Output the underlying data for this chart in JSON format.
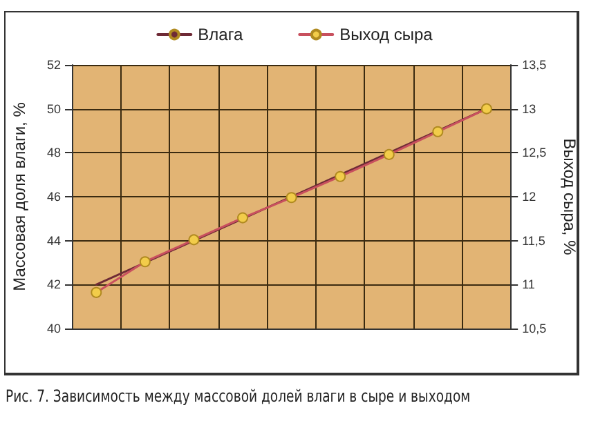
{
  "chart_data": {
    "type": "line",
    "categories": [
      null,
      null,
      null,
      null,
      null,
      null,
      null,
      null,
      null
    ],
    "series": [
      {
        "name": "Влага",
        "color": "#6e2a36",
        "marker": "none",
        "values": [
          42,
          43,
          44,
          45,
          46,
          47,
          48,
          49,
          50
        ]
      },
      {
        "name": "Выход сыра",
        "color": "#c8505e",
        "marker": "circle",
        "axis": "y2",
        "values": [
          10.91,
          11.26,
          11.51,
          11.76,
          11.99,
          12.23,
          12.48,
          12.74,
          13.0
        ]
      }
    ],
    "ylabel": "Массовая доля влаги, %",
    "y2label": "Выход сыра, %",
    "ylim": [
      40,
      52
    ],
    "yticks": [
      40,
      42,
      44,
      46,
      48,
      50,
      52
    ],
    "y2lim": [
      10.5,
      13.5
    ],
    "y2ticks": [
      {
        "value": 10.5,
        "label": "10,5"
      },
      {
        "value": 11,
        "label": "11"
      },
      {
        "value": 11.5,
        "label": "11,5"
      },
      {
        "value": 12,
        "label": "12"
      },
      {
        "value": 12.5,
        "label": "12,5"
      },
      {
        "value": 13,
        "label": "13"
      },
      {
        "value": 13.5,
        "label": "13,5"
      }
    ],
    "grid": true,
    "legend": "top",
    "annotations": [
      "Рис. 7. Зависимость между массовой долей влаги в сыре и выходом"
    ]
  }
}
